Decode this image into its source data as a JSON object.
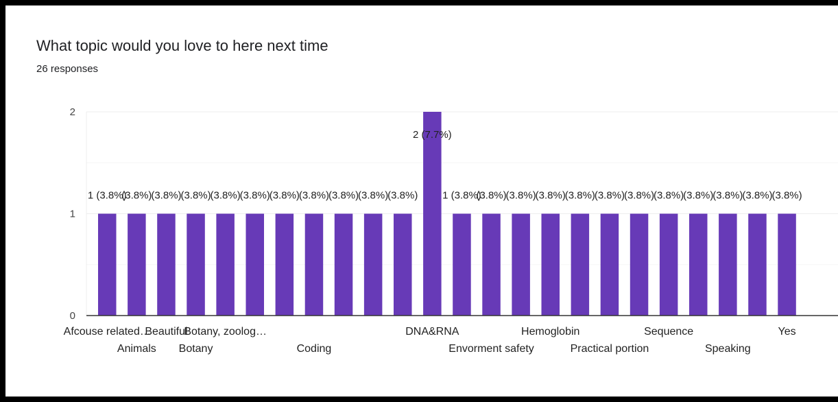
{
  "header": {
    "title": "What topic would you love to here next time",
    "subtitle": "26 responses"
  },
  "theme": {
    "bar_color": "#673ab7",
    "grid_color": "#eeeeee",
    "axis_color": "#333333"
  },
  "chart_data": {
    "type": "bar",
    "title": "What topic would you love to here next time",
    "subtitle": "26 responses",
    "xlabel": "",
    "ylabel": "",
    "ylim": [
      0,
      2
    ],
    "yticks": [
      0,
      1,
      2
    ],
    "grid": true,
    "categories": [
      "Afcouse related…",
      "Animals",
      "Beautiful",
      "Botany",
      "Botany, zoolog…",
      "",
      "",
      "Coding",
      "",
      "",
      "",
      "DNA&RNA",
      "",
      "Envorment safety",
      "",
      "Hemoglobin",
      "",
      "Practical portion",
      "",
      "Sequence",
      "",
      "Speaking",
      "",
      "Yes"
    ],
    "values": [
      1,
      1,
      1,
      1,
      1,
      1,
      1,
      1,
      1,
      1,
      1,
      2,
      1,
      1,
      1,
      1,
      1,
      1,
      1,
      1,
      1,
      1,
      1,
      1
    ],
    "data_labels": [
      "1 (3.8%)",
      "(3.8%)",
      "(3.8%)",
      "(3.8%)",
      "(3.8%)",
      "(3.8%)",
      "(3.8%)",
      "(3.8%)",
      "(3.8%)",
      "(3.8%)",
      "(3.8%)",
      "2 (7.7%)",
      "1 (3.8%)",
      "(3.8%)",
      "(3.8%)",
      "(3.8%)",
      "(3.8%)",
      "(3.8%)",
      "(3.8%)",
      "(3.8%)",
      "(3.8%)",
      "(3.8%)",
      "(3.8%)",
      "(3.8%)"
    ]
  }
}
